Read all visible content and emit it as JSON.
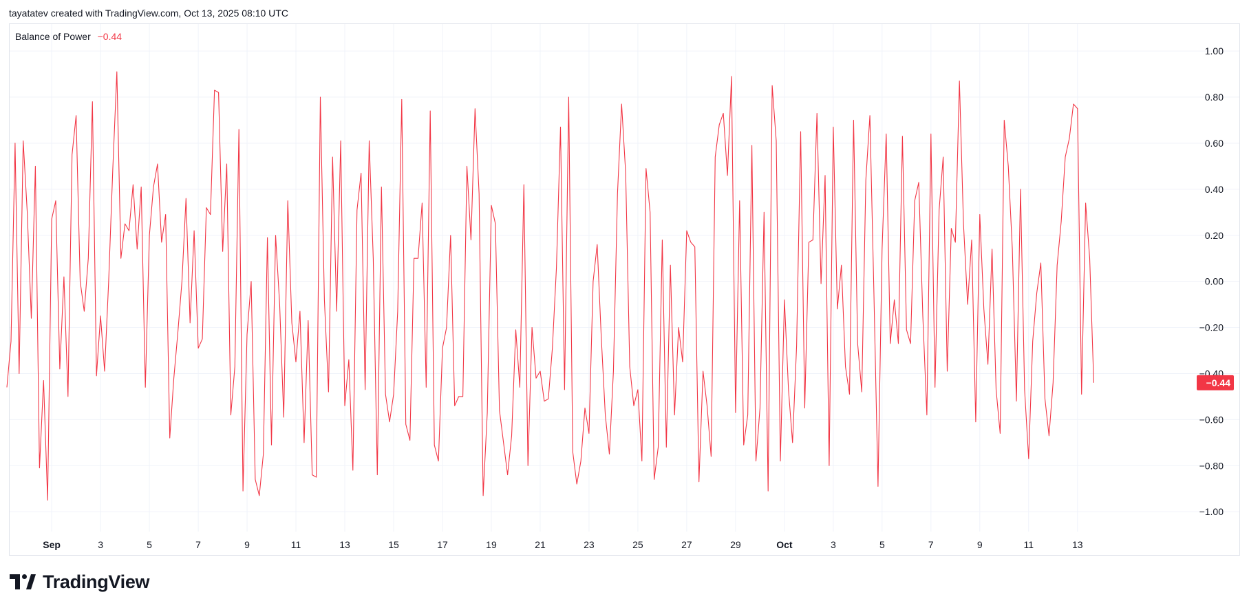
{
  "header": {
    "attribution": "tayatatev created with TradingView.com, Oct 13, 2025 08:10 UTC"
  },
  "legend": {
    "name": "Balance of Power",
    "value": "−0.44"
  },
  "brand": {
    "name": "TradingView",
    "icon": "tradingview-logo-icon"
  },
  "colors": {
    "series": "#f23645",
    "grid": "#f0f3fa",
    "text": "#131722",
    "border": "#e0e3eb"
  },
  "chart_data": {
    "type": "line",
    "title": "Balance of Power",
    "series_name": "Balance of Power",
    "last_value": -0.44,
    "last_value_label": "−0.44",
    "ylim": [
      -1.14,
      1.12
    ],
    "yticks": [
      {
        "v": 1.0,
        "label": "1.00"
      },
      {
        "v": 0.8,
        "label": "0.80"
      },
      {
        "v": 0.6,
        "label": "0.60"
      },
      {
        "v": 0.4,
        "label": "0.40"
      },
      {
        "v": 0.2,
        "label": "0.20"
      },
      {
        "v": 0.0,
        "label": "0.00"
      },
      {
        "v": -0.2,
        "label": "−0.20"
      },
      {
        "v": -0.4,
        "label": "−0.40"
      },
      {
        "v": -0.6,
        "label": "−0.60"
      },
      {
        "v": -0.8,
        "label": "−0.80"
      },
      {
        "v": -1.0,
        "label": "−1.00"
      }
    ],
    "xticks": [
      {
        "label": "Sep",
        "x": 12,
        "bold": true
      },
      {
        "label": "3",
        "x": 24
      },
      {
        "label": "5",
        "x": 36
      },
      {
        "label": "7",
        "x": 48
      },
      {
        "label": "9",
        "x": 60
      },
      {
        "label": "11",
        "x": 72
      },
      {
        "label": "13",
        "x": 84
      },
      {
        "label": "15",
        "x": 96
      },
      {
        "label": "17",
        "x": 108
      },
      {
        "label": "19",
        "x": 120
      },
      {
        "label": "21",
        "x": 132
      },
      {
        "label": "23",
        "x": 144
      },
      {
        "label": "25",
        "x": 156
      },
      {
        "label": "27",
        "x": 168
      },
      {
        "label": "29",
        "x": 180
      },
      {
        "label": "Oct",
        "x": 192,
        "bold": true
      },
      {
        "label": "3",
        "x": 204
      },
      {
        "label": "5",
        "x": 216
      },
      {
        "label": "7",
        "x": 228
      },
      {
        "label": "9",
        "x": 240
      },
      {
        "label": "11",
        "x": 252
      },
      {
        "label": "13",
        "x": 264
      }
    ],
    "xlim": [
      1.5,
      285
    ],
    "grid": true,
    "values": [
      -0.46,
      -0.26,
      0.6,
      -0.4,
      0.61,
      0.3,
      -0.16,
      0.5,
      -0.81,
      -0.43,
      -0.95,
      0.27,
      0.35,
      -0.38,
      0.02,
      -0.5,
      0.55,
      0.72,
      0.0,
      -0.13,
      0.1,
      0.78,
      -0.41,
      -0.15,
      -0.39,
      0.0,
      0.48,
      0.91,
      0.1,
      0.25,
      0.22,
      0.42,
      0.14,
      0.41,
      -0.46,
      0.2,
      0.41,
      0.51,
      0.17,
      0.29,
      -0.68,
      -0.42,
      -0.22,
      0.0,
      0.36,
      -0.18,
      0.22,
      -0.29,
      -0.25,
      0.32,
      0.29,
      0.83,
      0.82,
      0.13,
      0.51,
      -0.58,
      -0.37,
      0.66,
      -0.91,
      -0.23,
      0.0,
      -0.86,
      -0.93,
      -0.75,
      0.19,
      -0.71,
      0.2,
      -0.1,
      -0.59,
      0.35,
      -0.18,
      -0.35,
      -0.13,
      -0.7,
      -0.17,
      -0.84,
      -0.85,
      0.8,
      -0.08,
      -0.48,
      0.54,
      -0.13,
      0.61,
      -0.54,
      -0.34,
      -0.82,
      0.31,
      0.47,
      -0.47,
      0.61,
      0.1,
      -0.84,
      0.41,
      -0.49,
      -0.61,
      -0.49,
      -0.13,
      0.79,
      -0.62,
      -0.69,
      0.1,
      0.1,
      0.34,
      -0.46,
      0.74,
      -0.71,
      -0.78,
      -0.29,
      -0.2,
      0.2,
      -0.54,
      -0.5,
      -0.5,
      0.5,
      0.18,
      0.75,
      0.38,
      -0.93,
      -0.57,
      0.33,
      0.25,
      -0.56,
      -0.7,
      -0.84,
      -0.67,
      -0.21,
      -0.46,
      0.42,
      -0.8,
      -0.2,
      -0.42,
      -0.39,
      -0.52,
      -0.51,
      -0.29,
      0.06,
      0.67,
      -0.47,
      0.8,
      -0.74,
      -0.88,
      -0.78,
      -0.55,
      -0.66,
      0.0,
      0.16,
      -0.24,
      -0.58,
      -0.75,
      -0.39,
      0.38,
      0.77,
      0.47,
      -0.37,
      -0.54,
      -0.47,
      -0.78,
      0.49,
      0.3,
      -0.86,
      -0.72,
      0.18,
      -0.72,
      0.07,
      -0.58,
      -0.2,
      -0.35,
      0.22,
      0.17,
      0.15,
      -0.87,
      -0.39,
      -0.54,
      -0.76,
      0.54,
      0.68,
      0.73,
      0.46,
      0.89,
      -0.57,
      0.35,
      -0.71,
      -0.58,
      0.59,
      -0.78,
      -0.55,
      0.3,
      -0.91,
      0.85,
      0.61,
      -0.78,
      -0.08,
      -0.47,
      -0.7,
      -0.28,
      0.65,
      -0.55,
      0.17,
      0.18,
      0.73,
      -0.01,
      0.46,
      -0.8,
      0.67,
      -0.12,
      0.07,
      -0.37,
      -0.49,
      0.7,
      -0.27,
      -0.48,
      0.44,
      0.72,
      -0.06,
      -0.89,
      0.14,
      0.64,
      -0.27,
      -0.08,
      -0.27,
      0.63,
      -0.21,
      -0.27,
      0.35,
      0.43,
      -0.15,
      -0.58,
      0.64,
      -0.46,
      0.31,
      0.54,
      -0.39,
      0.23,
      0.17,
      0.87,
      0.25,
      -0.1,
      0.18,
      -0.61,
      0.29,
      -0.12,
      -0.36,
      0.14,
      -0.47,
      -0.66,
      0.7,
      0.5,
      0.14,
      -0.52,
      0.4,
      -0.47,
      -0.77,
      -0.26,
      -0.05,
      0.08,
      -0.51,
      -0.67,
      -0.44,
      0.07,
      0.26,
      0.54,
      0.62,
      0.77,
      0.75,
      -0.49,
      0.34,
      0.1,
      -0.44
    ]
  }
}
